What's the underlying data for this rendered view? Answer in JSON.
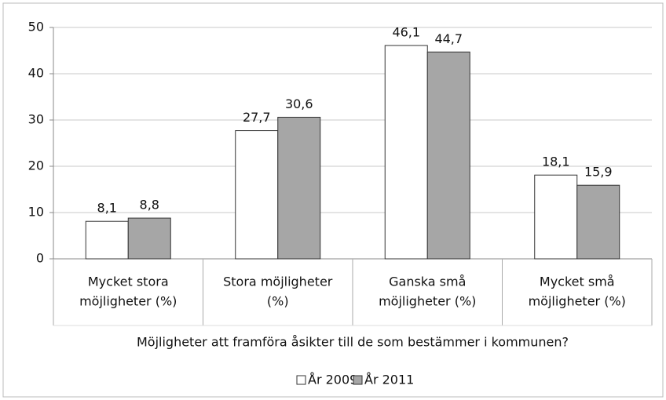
{
  "chart_data": {
    "type": "bar",
    "categories": [
      [
        "Mycket stora",
        "möjligheter (%)"
      ],
      [
        "Stora möjligheter",
        "(%)"
      ],
      [
        "Ganska små",
        "möjligheter (%)"
      ],
      [
        "Mycket små",
        "möjligheter (%)"
      ]
    ],
    "x_label": "Möjligheter att framföra åsikter till de som bestämmer i kommunen?",
    "series": [
      {
        "name": "År 2009",
        "color": "#ffffff",
        "values": [
          8.1,
          27.7,
          46.1,
          18.1
        ],
        "value_labels": [
          "8,1",
          "27,7",
          "46,1",
          "18,1"
        ]
      },
      {
        "name": "År 2011",
        "color": "#a6a6a6",
        "values": [
          8.8,
          30.6,
          44.7,
          15.9
        ],
        "value_labels": [
          "8,8",
          "30,6",
          "44,7",
          "15,9"
        ]
      }
    ],
    "ylim": [
      0,
      50
    ],
    "yticks": [
      0,
      10,
      20,
      30,
      40,
      50
    ],
    "grid": true,
    "legend": "bottom"
  }
}
